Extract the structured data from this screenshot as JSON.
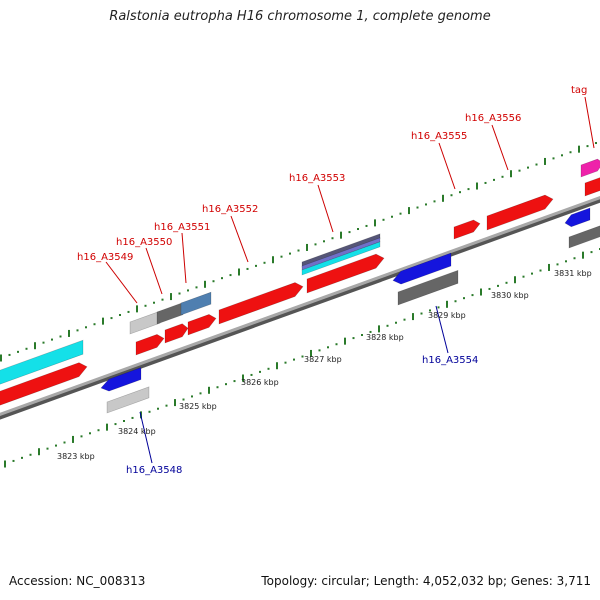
{
  "title": "Ralstonia eutropha H16 chromosome 1, complete genome",
  "footer": {
    "accession": "Accession: NC_008313",
    "summary": "Topology: circular; Length: 4,052,032 bp; Genes: 3,711"
  },
  "colors": {
    "backbone": "#8a8a8a",
    "forward_gene": "#ee1111",
    "reverse_gene": "#1515dd",
    "grey_feature": "#c8c8c8",
    "dark_feature": "#666666",
    "steel_feature": "#4f7fb0",
    "cyan_feature": "#14e0e8",
    "magenta_feature": "#ee22aa",
    "tick": "#2a7a2a"
  },
  "kbp_labels": [
    "3823 kbp",
    "3824 kbp",
    "3825 kbp",
    "3826 kbp",
    "3827 kbp",
    "3828 kbp",
    "3829 kbp",
    "3830 kbp",
    "3831 kbp"
  ],
  "forward_labels": [
    "h16_A3549",
    "h16_A3550",
    "h16_A3551",
    "h16_A3552",
    "h16_A3553",
    "h16_A3555",
    "h16_A3556",
    "tag"
  ],
  "reverse_labels": [
    "h16_A3548",
    "h16_A3554"
  ]
}
